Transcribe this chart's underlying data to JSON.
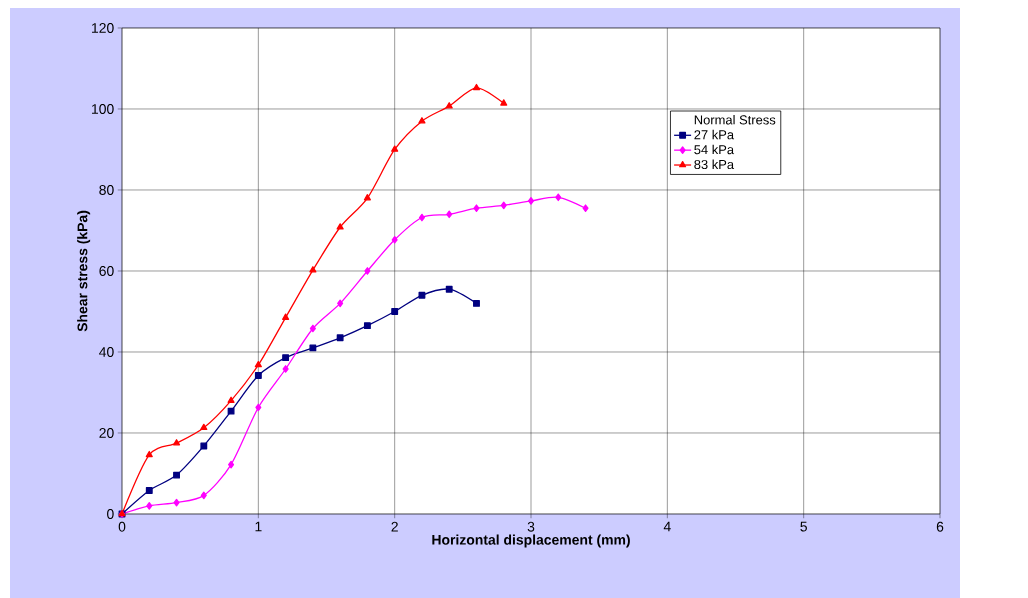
{
  "chart_data": {
    "type": "line",
    "xlabel": "Horizontal displacement (mm)",
    "ylabel": "Shear stress (kPa)",
    "legend_title": "Normal Stress",
    "series": [
      {
        "name": "27 kPa",
        "color": "#000080",
        "marker": "square",
        "x": [
          0,
          0.2,
          0.4,
          0.6,
          0.8,
          1.0,
          1.2,
          1.4,
          1.6,
          1.8,
          2.0,
          2.2,
          2.4,
          2.6
        ],
        "values": [
          0,
          5.8,
          9.6,
          16.8,
          25.4,
          34.2,
          38.6,
          41,
          43.5,
          46.5,
          50,
          54,
          55.5,
          52
        ]
      },
      {
        "name": "54 kPa",
        "color": "#ff00ff",
        "marker": "diamond",
        "x": [
          0,
          0.2,
          0.4,
          0.6,
          0.8,
          1.0,
          1.2,
          1.4,
          1.6,
          1.8,
          2.0,
          2.2,
          2.4,
          2.6,
          2.8,
          3.0,
          3.2,
          3.4
        ],
        "values": [
          0,
          2,
          2.8,
          4.6,
          12.2,
          26.3,
          35.8,
          45.8,
          52,
          60,
          67.7,
          73.2,
          74,
          75.5,
          76.2,
          77.3,
          78.2,
          75.5
        ]
      },
      {
        "name": "83 kPa",
        "color": "#ff0000",
        "marker": "triangle",
        "x": [
          0,
          0.2,
          0.4,
          0.6,
          0.8,
          1.0,
          1.2,
          1.4,
          1.6,
          1.8,
          2.0,
          2.2,
          2.4,
          2.6,
          2.8
        ],
        "values": [
          0,
          14.6,
          17.5,
          21.3,
          28,
          36.8,
          48.5,
          60.2,
          70.8,
          78,
          90,
          97,
          100.7,
          105.2,
          101.4
        ]
      }
    ],
    "xlim": [
      0,
      6
    ],
    "xticks": [
      0,
      1,
      2,
      3,
      4,
      5,
      6
    ],
    "ylim": [
      0,
      120
    ],
    "yticks": [
      0,
      20,
      40,
      60,
      80,
      100,
      120
    ],
    "grid": true,
    "legend": "top right",
    "line_style": "solid"
  }
}
